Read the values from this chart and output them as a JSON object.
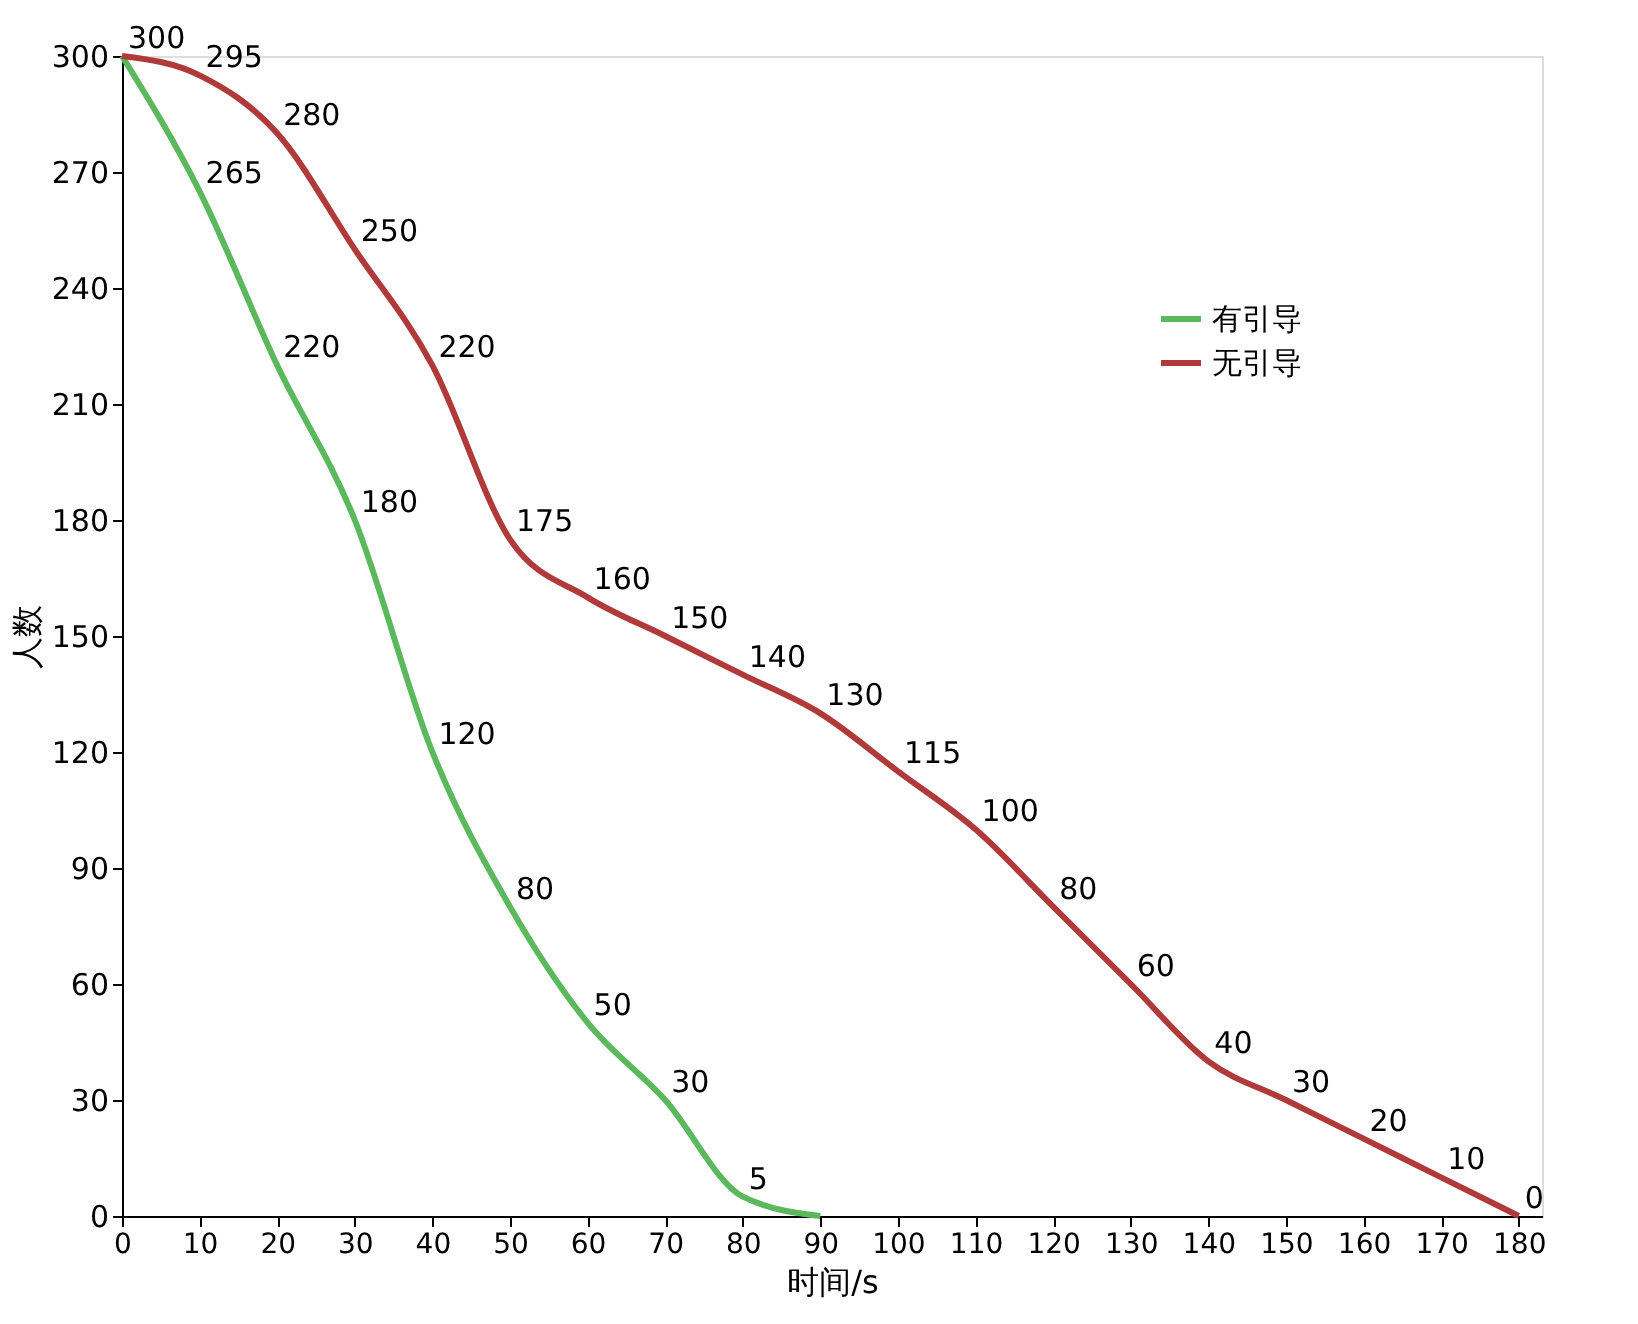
{
  "chart_data": {
    "type": "line",
    "xlabel": "时间/s",
    "ylabel": "人数",
    "xlim": [
      0,
      183
    ],
    "ylim": [
      0,
      300
    ],
    "xticks": [
      0,
      10,
      20,
      30,
      40,
      50,
      60,
      70,
      80,
      90,
      100,
      110,
      120,
      130,
      140,
      150,
      160,
      170,
      180
    ],
    "yticks": [
      0,
      30,
      60,
      90,
      120,
      150,
      180,
      210,
      240,
      270,
      300
    ],
    "grid": false,
    "legend": "top right",
    "line_style": "solid",
    "marker": "none",
    "series": [
      {
        "name": "有引导",
        "color": "#5cb85c",
        "x": [
          0,
          10,
          20,
          30,
          40,
          50,
          60,
          70,
          80,
          90
        ],
        "values": [
          300,
          265,
          220,
          180,
          120,
          80,
          50,
          30,
          5,
          0
        ],
        "value_labels": [
          null,
          "265",
          "220",
          "180",
          "120",
          "80",
          "50",
          "30",
          "5",
          null
        ]
      },
      {
        "name": "无引导",
        "color": "#b03a3a",
        "x": [
          0,
          10,
          20,
          30,
          40,
          50,
          60,
          70,
          80,
          90,
          100,
          110,
          120,
          130,
          140,
          150,
          160,
          170,
          180
        ],
        "values": [
          300,
          295,
          280,
          250,
          220,
          175,
          160,
          150,
          140,
          130,
          115,
          100,
          80,
          60,
          40,
          30,
          20,
          10,
          0
        ],
        "value_labels": [
          "300",
          "295",
          "280",
          "250",
          "220",
          "175",
          "160",
          "150",
          "140",
          "130",
          "115",
          "100",
          "80",
          "60",
          "40",
          "30",
          "20",
          "10",
          "0"
        ]
      }
    ]
  }
}
